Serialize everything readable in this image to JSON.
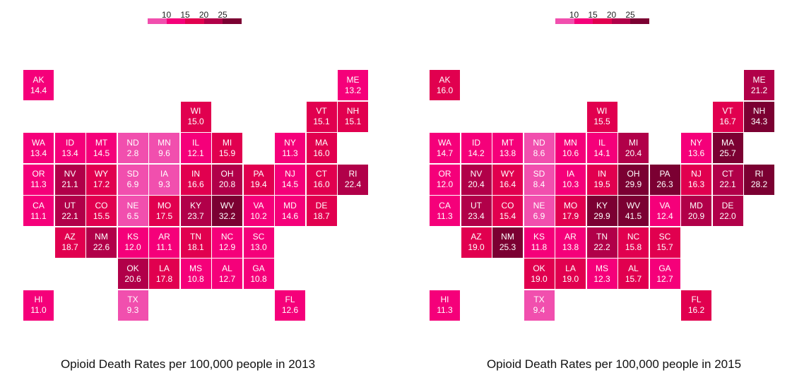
{
  "color_scale": {
    "breaks": [
      "10",
      "15",
      "20",
      "25"
    ],
    "colors": [
      "#f14fae",
      "#f5007a",
      "#e1004f",
      "#b10049",
      "#7b0032"
    ]
  },
  "maps": [
    {
      "caption": "Opioid Death Rates per 100,000 people in 2013",
      "tiles": [
        {
          "state": "AK",
          "value": "14.4",
          "row": 0,
          "col": 0
        },
        {
          "state": "ME",
          "value": "13.2",
          "row": 0,
          "col": 10
        },
        {
          "state": "WI",
          "value": "15.0",
          "row": 1,
          "col": 5
        },
        {
          "state": "VT",
          "value": "15.1",
          "row": 1,
          "col": 9
        },
        {
          "state": "NH",
          "value": "15.1",
          "row": 1,
          "col": 10
        },
        {
          "state": "WA",
          "value": "13.4",
          "row": 2,
          "col": 0
        },
        {
          "state": "ID",
          "value": "13.4",
          "row": 2,
          "col": 1
        },
        {
          "state": "MT",
          "value": "14.5",
          "row": 2,
          "col": 2
        },
        {
          "state": "ND",
          "value": "2.8",
          "row": 2,
          "col": 3
        },
        {
          "state": "MN",
          "value": "9.6",
          "row": 2,
          "col": 4
        },
        {
          "state": "IL",
          "value": "12.1",
          "row": 2,
          "col": 5
        },
        {
          "state": "MI",
          "value": "15.9",
          "row": 2,
          "col": 6
        },
        {
          "state": "NY",
          "value": "11.3",
          "row": 2,
          "col": 8
        },
        {
          "state": "MA",
          "value": "16.0",
          "row": 2,
          "col": 9
        },
        {
          "state": "OR",
          "value": "11.3",
          "row": 3,
          "col": 0
        },
        {
          "state": "NV",
          "value": "21.1",
          "row": 3,
          "col": 1
        },
        {
          "state": "WY",
          "value": "17.2",
          "row": 3,
          "col": 2
        },
        {
          "state": "SD",
          "value": "6.9",
          "row": 3,
          "col": 3
        },
        {
          "state": "IA",
          "value": "9.3",
          "row": 3,
          "col": 4
        },
        {
          "state": "IN",
          "value": "16.6",
          "row": 3,
          "col": 5
        },
        {
          "state": "OH",
          "value": "20.8",
          "row": 3,
          "col": 6
        },
        {
          "state": "PA",
          "value": "19.4",
          "row": 3,
          "col": 7
        },
        {
          "state": "NJ",
          "value": "14.5",
          "row": 3,
          "col": 8
        },
        {
          "state": "CT",
          "value": "16.0",
          "row": 3,
          "col": 9
        },
        {
          "state": "RI",
          "value": "22.4",
          "row": 3,
          "col": 10
        },
        {
          "state": "CA",
          "value": "11.1",
          "row": 4,
          "col": 0
        },
        {
          "state": "UT",
          "value": "22.1",
          "row": 4,
          "col": 1
        },
        {
          "state": "CO",
          "value": "15.5",
          "row": 4,
          "col": 2
        },
        {
          "state": "NE",
          "value": "6.5",
          "row": 4,
          "col": 3
        },
        {
          "state": "MO",
          "value": "17.5",
          "row": 4,
          "col": 4
        },
        {
          "state": "KY",
          "value": "23.7",
          "row": 4,
          "col": 5
        },
        {
          "state": "WV",
          "value": "32.2",
          "row": 4,
          "col": 6
        },
        {
          "state": "VA",
          "value": "10.2",
          "row": 4,
          "col": 7
        },
        {
          "state": "MD",
          "value": "14.6",
          "row": 4,
          "col": 8
        },
        {
          "state": "DE",
          "value": "18.7",
          "row": 4,
          "col": 9
        },
        {
          "state": "AZ",
          "value": "18.7",
          "row": 5,
          "col": 1
        },
        {
          "state": "NM",
          "value": "22.6",
          "row": 5,
          "col": 2
        },
        {
          "state": "KS",
          "value": "12.0",
          "row": 5,
          "col": 3
        },
        {
          "state": "AR",
          "value": "11.1",
          "row": 5,
          "col": 4
        },
        {
          "state": "TN",
          "value": "18.1",
          "row": 5,
          "col": 5
        },
        {
          "state": "NC",
          "value": "12.9",
          "row": 5,
          "col": 6
        },
        {
          "state": "SC",
          "value": "13.0",
          "row": 5,
          "col": 7
        },
        {
          "state": "OK",
          "value": "20.6",
          "row": 6,
          "col": 3
        },
        {
          "state": "LA",
          "value": "17.8",
          "row": 6,
          "col": 4
        },
        {
          "state": "MS",
          "value": "10.8",
          "row": 6,
          "col": 5
        },
        {
          "state": "AL",
          "value": "12.7",
          "row": 6,
          "col": 6
        },
        {
          "state": "GA",
          "value": "10.8",
          "row": 6,
          "col": 7
        },
        {
          "state": "HI",
          "value": "11.0",
          "row": 7,
          "col": 0
        },
        {
          "state": "TX",
          "value": "9.3",
          "row": 7,
          "col": 3
        },
        {
          "state": "FL",
          "value": "12.6",
          "row": 7,
          "col": 8
        }
      ]
    },
    {
      "caption": "Opioid Death Rates per 100,000 people in 2015",
      "tiles": [
        {
          "state": "AK",
          "value": "16.0",
          "row": 0,
          "col": 0
        },
        {
          "state": "ME",
          "value": "21.2",
          "row": 0,
          "col": 10
        },
        {
          "state": "WI",
          "value": "15.5",
          "row": 1,
          "col": 5
        },
        {
          "state": "VT",
          "value": "16.7",
          "row": 1,
          "col": 9
        },
        {
          "state": "NH",
          "value": "34.3",
          "row": 1,
          "col": 10
        },
        {
          "state": "WA",
          "value": "14.7",
          "row": 2,
          "col": 0
        },
        {
          "state": "ID",
          "value": "14.2",
          "row": 2,
          "col": 1
        },
        {
          "state": "MT",
          "value": "13.8",
          "row": 2,
          "col": 2
        },
        {
          "state": "ND",
          "value": "8.6",
          "row": 2,
          "col": 3
        },
        {
          "state": "MN",
          "value": "10.6",
          "row": 2,
          "col": 4
        },
        {
          "state": "IL",
          "value": "14.1",
          "row": 2,
          "col": 5
        },
        {
          "state": "MI",
          "value": "20.4",
          "row": 2,
          "col": 6
        },
        {
          "state": "NY",
          "value": "13.6",
          "row": 2,
          "col": 8
        },
        {
          "state": "MA",
          "value": "25.7",
          "row": 2,
          "col": 9
        },
        {
          "state": "OR",
          "value": "12.0",
          "row": 3,
          "col": 0
        },
        {
          "state": "NV",
          "value": "20.4",
          "row": 3,
          "col": 1
        },
        {
          "state": "WY",
          "value": "16.4",
          "row": 3,
          "col": 2
        },
        {
          "state": "SD",
          "value": "8.4",
          "row": 3,
          "col": 3
        },
        {
          "state": "IA",
          "value": "10.3",
          "row": 3,
          "col": 4
        },
        {
          "state": "IN",
          "value": "19.5",
          "row": 3,
          "col": 5
        },
        {
          "state": "OH",
          "value": "29.9",
          "row": 3,
          "col": 6
        },
        {
          "state": "PA",
          "value": "26.3",
          "row": 3,
          "col": 7
        },
        {
          "state": "NJ",
          "value": "16.3",
          "row": 3,
          "col": 8
        },
        {
          "state": "CT",
          "value": "22.1",
          "row": 3,
          "col": 9
        },
        {
          "state": "RI",
          "value": "28.2",
          "row": 3,
          "col": 10
        },
        {
          "state": "CA",
          "value": "11.3",
          "row": 4,
          "col": 0
        },
        {
          "state": "UT",
          "value": "23.4",
          "row": 4,
          "col": 1
        },
        {
          "state": "CO",
          "value": "15.4",
          "row": 4,
          "col": 2
        },
        {
          "state": "NE",
          "value": "6.9",
          "row": 4,
          "col": 3
        },
        {
          "state": "MO",
          "value": "17.9",
          "row": 4,
          "col": 4
        },
        {
          "state": "KY",
          "value": "29.9",
          "row": 4,
          "col": 5
        },
        {
          "state": "WV",
          "value": "41.5",
          "row": 4,
          "col": 6
        },
        {
          "state": "VA",
          "value": "12.4",
          "row": 4,
          "col": 7
        },
        {
          "state": "MD",
          "value": "20.9",
          "row": 4,
          "col": 8
        },
        {
          "state": "DE",
          "value": "22.0",
          "row": 4,
          "col": 9
        },
        {
          "state": "AZ",
          "value": "19.0",
          "row": 5,
          "col": 1
        },
        {
          "state": "NM",
          "value": "25.3",
          "row": 5,
          "col": 2
        },
        {
          "state": "KS",
          "value": "11.8",
          "row": 5,
          "col": 3
        },
        {
          "state": "AR",
          "value": "13.8",
          "row": 5,
          "col": 4
        },
        {
          "state": "TN",
          "value": "22.2",
          "row": 5,
          "col": 5
        },
        {
          "state": "NC",
          "value": "15.8",
          "row": 5,
          "col": 6
        },
        {
          "state": "SC",
          "value": "15.7",
          "row": 5,
          "col": 7
        },
        {
          "state": "OK",
          "value": "19.0",
          "row": 6,
          "col": 3
        },
        {
          "state": "LA",
          "value": "19.0",
          "row": 6,
          "col": 4
        },
        {
          "state": "MS",
          "value": "12.3",
          "row": 6,
          "col": 5
        },
        {
          "state": "AL",
          "value": "15.7",
          "row": 6,
          "col": 6
        },
        {
          "state": "GA",
          "value": "12.7",
          "row": 6,
          "col": 7
        },
        {
          "state": "HI",
          "value": "11.3",
          "row": 7,
          "col": 0
        },
        {
          "state": "TX",
          "value": "9.4",
          "row": 7,
          "col": 3
        },
        {
          "state": "FL",
          "value": "16.2",
          "row": 7,
          "col": 8
        }
      ]
    }
  ]
}
